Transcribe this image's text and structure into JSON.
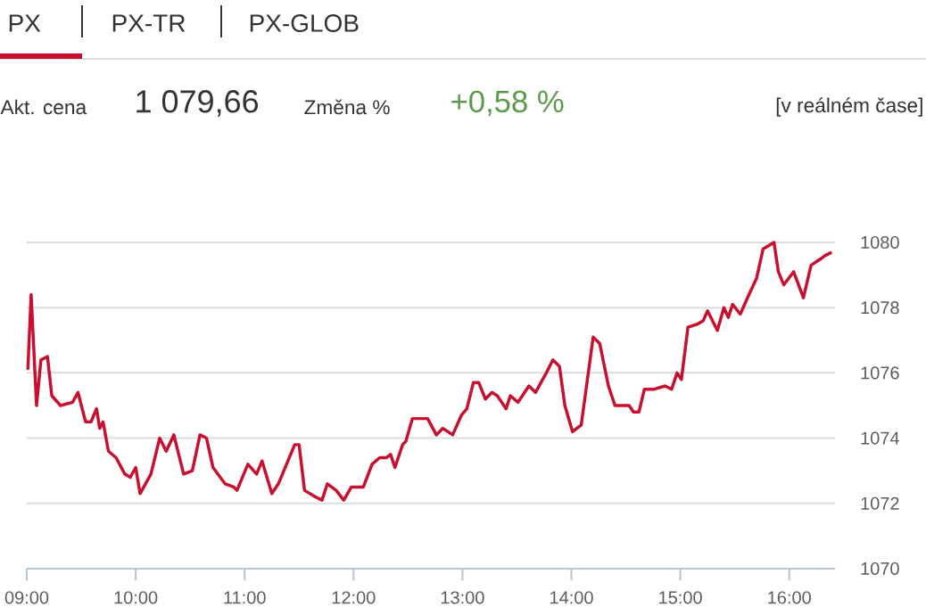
{
  "chart_data": {
    "type": "line",
    "annotations": [
      "PX",
      "PX-TR",
      "PX-GLOB",
      "Akt. cena",
      "1 079,66",
      "Změna %",
      "+0,58 %",
      "[v reálném čase]"
    ],
    "x": [
      9.01,
      9.04,
      9.09,
      9.13,
      9.19,
      9.23,
      9.31,
      9.42,
      9.47,
      9.54,
      9.59,
      9.64,
      9.67,
      9.7,
      9.75,
      9.82,
      9.9,
      9.95,
      10.0,
      10.04,
      10.09,
      10.14,
      10.22,
      10.28,
      10.35,
      10.44,
      10.52,
      10.59,
      10.65,
      10.71,
      10.82,
      10.9,
      10.93,
      11.03,
      11.11,
      11.16,
      11.25,
      11.31,
      11.46,
      11.5,
      11.55,
      11.65,
      11.71,
      11.76,
      11.84,
      11.91,
      11.98,
      12.05,
      12.09,
      12.17,
      12.24,
      12.3,
      12.34,
      12.38,
      12.45,
      12.48,
      12.54,
      12.68,
      12.76,
      12.82,
      12.91,
      12.99,
      13.04,
      13.1,
      13.15,
      13.21,
      13.27,
      13.32,
      13.4,
      13.44,
      13.51,
      13.61,
      13.67,
      13.77,
      13.83,
      13.89,
      13.94,
      14.01,
      14.09,
      14.2,
      14.26,
      14.34,
      14.4,
      14.49,
      14.53,
      14.57,
      14.62,
      14.67,
      14.76,
      14.86,
      14.92,
      14.97,
      15.01,
      15.07,
      15.16,
      15.21,
      15.25,
      15.34,
      15.4,
      15.44,
      15.48,
      15.55,
      15.63,
      15.7,
      15.76,
      15.86,
      15.9,
      15.95,
      16.04,
      16.13,
      16.2,
      16.29,
      16.33,
      16.39
    ],
    "series": [
      {
        "color": "#c8102e",
        "values": [
          1076.1,
          1078.4,
          1075.0,
          1076.4,
          1076.5,
          1075.3,
          1075.0,
          1075.1,
          1075.4,
          1074.5,
          1074.5,
          1074.9,
          1074.3,
          1074.5,
          1073.6,
          1073.4,
          1072.9,
          1072.8,
          1073.1,
          1072.3,
          1072.6,
          1072.9,
          1074.0,
          1073.6,
          1074.1,
          1072.9,
          1073.0,
          1074.1,
          1074.0,
          1073.1,
          1072.6,
          1072.5,
          1072.4,
          1073.2,
          1072.9,
          1073.3,
          1072.3,
          1072.6,
          1073.8,
          1073.8,
          1072.4,
          1072.2,
          1072.1,
          1072.6,
          1072.4,
          1072.1,
          1072.5,
          1072.5,
          1072.5,
          1073.2,
          1073.4,
          1073.4,
          1073.5,
          1073.1,
          1073.8,
          1073.9,
          1074.6,
          1074.6,
          1074.1,
          1074.3,
          1074.1,
          1074.7,
          1074.9,
          1075.7,
          1075.7,
          1075.2,
          1075.4,
          1075.3,
          1074.9,
          1075.3,
          1075.1,
          1075.6,
          1075.4,
          1076.0,
          1076.4,
          1076.2,
          1075.0,
          1074.2,
          1074.4,
          1077.1,
          1076.9,
          1075.6,
          1075.0,
          1075.0,
          1075.0,
          1074.8,
          1074.8,
          1075.5,
          1075.5,
          1075.6,
          1075.5,
          1076.0,
          1075.8,
          1077.4,
          1077.5,
          1077.6,
          1077.9,
          1077.3,
          1078.0,
          1077.7,
          1078.1,
          1077.8,
          1078.4,
          1078.9,
          1079.8,
          1080.0,
          1079.1,
          1078.7,
          1079.1,
          1078.3,
          1079.3,
          1079.5,
          1079.6,
          1079.7
        ]
      }
    ],
    "xlim": [
      9,
      16.42
    ],
    "ylim": [
      1070,
      1080
    ],
    "xticks": [
      {
        "value": 9,
        "label": "09:00"
      },
      {
        "value": 10,
        "label": "10:00"
      },
      {
        "value": 11,
        "label": "11:00"
      },
      {
        "value": 12,
        "label": "12:00"
      },
      {
        "value": 13,
        "label": "13:00"
      },
      {
        "value": 14,
        "label": "14:00"
      },
      {
        "value": 15,
        "label": "15:00"
      },
      {
        "value": 16,
        "label": "16:00"
      }
    ],
    "yticks": [
      1070,
      1072,
      1074,
      1076,
      1078,
      1080
    ],
    "grid": "y"
  }
}
